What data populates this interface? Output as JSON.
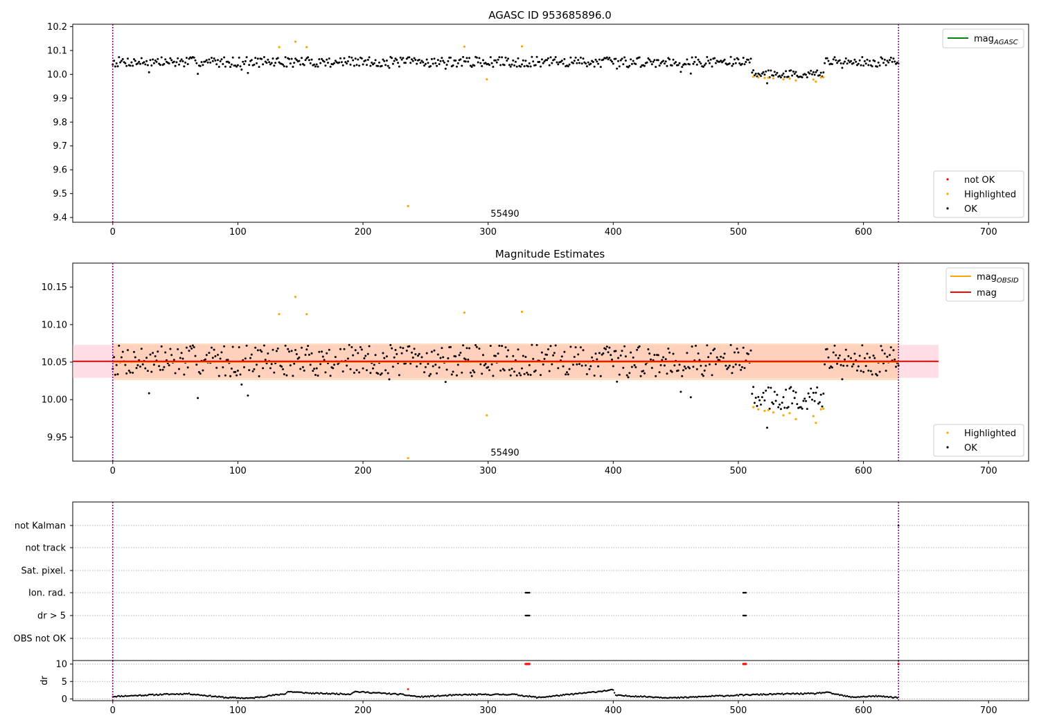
{
  "chart_data": [
    {
      "type": "scatter",
      "title": "AGASC ID 953685896.0",
      "xlabel": "",
      "ylabel": "",
      "xlim": [
        -32,
        732
      ],
      "ylim": [
        9.38,
        10.21
      ],
      "x_ticks": [
        0,
        100,
        200,
        300,
        400,
        500,
        600,
        700
      ],
      "y_ticks": [
        9.4,
        9.5,
        9.6,
        9.7,
        9.8,
        9.9,
        10.0,
        10.1,
        10.2
      ],
      "y_tick_labels": [
        "9.4",
        "9.5",
        "9.6",
        "9.7",
        "9.8",
        "9.9",
        "10.0",
        "10.1",
        "10.2"
      ],
      "grid": false,
      "vlines": [
        0,
        628
      ],
      "obsid_labels": [
        {
          "x": 302,
          "text": "55490"
        }
      ],
      "lines": [
        {
          "name": "mag_AGASC",
          "color": "#008000",
          "y": null
        }
      ],
      "legend_lines": {
        "position": "top-right",
        "entries": [
          {
            "base": "mag",
            "sub": "AGASC",
            "color": "#008000"
          }
        ]
      },
      "legend_points": {
        "position": "bottom-right",
        "entries": [
          {
            "label": "not OK",
            "color": "#ff0000"
          },
          {
            "label": "Highlighted",
            "color": "#ffa500"
          },
          {
            "label": "OK",
            "color": "#000000"
          }
        ]
      },
      "ok_series": {
        "name": "OK",
        "color": "#000000",
        "generator": {
          "n": 629,
          "base": 10.052,
          "noise": 0.021,
          "dip": [
            512,
            568,
            -0.05
          ],
          "seed": 7
        }
      },
      "highlighted_series": {
        "name": "Highlighted",
        "color": "#ffa500",
        "x": [
          133,
          146,
          155,
          236,
          281,
          299,
          327,
          512,
          516,
          521,
          524,
          528,
          536,
          541,
          546,
          560,
          562,
          566,
          568
        ],
        "y": [
          10.114,
          10.137,
          10.114,
          9.448,
          10.116,
          9.979,
          10.117,
          9.99,
          9.987,
          9.985,
          9.986,
          9.983,
          9.979,
          9.982,
          9.974,
          9.978,
          9.969,
          9.987,
          9.988
        ]
      }
    },
    {
      "type": "scatter",
      "title": "Magnitude Estimates",
      "xlabel": "",
      "ylabel": "",
      "xlim": [
        -32,
        732
      ],
      "ylim": [
        9.918,
        10.182
      ],
      "x_ticks": [
        0,
        100,
        200,
        300,
        400,
        500,
        600,
        700
      ],
      "y_ticks": [
        9.95,
        10.0,
        10.05,
        10.1,
        10.15
      ],
      "y_tick_labels": [
        "9.95",
        "10.00",
        "10.05",
        "10.10",
        "10.15"
      ],
      "grid": false,
      "vlines": [
        0,
        628
      ],
      "obsid_labels": [
        {
          "x": 302,
          "text": "55490"
        }
      ],
      "mag": 10.051,
      "mag_band": [
        10.029,
        10.073
      ],
      "mag_band_x": [
        -32,
        660
      ],
      "mag_obsid": 10.05,
      "mag_obsid_band": [
        10.026,
        10.075
      ],
      "mag_obsid_band_x": [
        0,
        628
      ],
      "legend_lines": {
        "position": "top-right",
        "entries": [
          {
            "base": "mag",
            "sub": "OBSID",
            "color": "#ffa500"
          },
          {
            "base": "mag",
            "sub": "",
            "color": "#ff0000"
          }
        ]
      },
      "legend_points": {
        "position": "bottom-right",
        "entries": [
          {
            "label": "Highlighted",
            "color": "#ffa500"
          },
          {
            "label": "OK",
            "color": "#000000"
          }
        ]
      },
      "ok_series": {
        "name": "OK",
        "color": "#000000",
        "generator": {
          "n": 629,
          "base": 10.052,
          "noise": 0.021,
          "dip": [
            512,
            568,
            -0.05
          ],
          "seed": 7
        }
      },
      "highlighted_series": {
        "name": "Highlighted",
        "color": "#ffa500",
        "x": [
          133,
          146,
          155,
          236,
          281,
          299,
          327,
          512,
          516,
          521,
          524,
          528,
          536,
          541,
          546,
          560,
          562,
          566,
          568
        ],
        "y": [
          10.114,
          10.137,
          10.114,
          9.922,
          10.116,
          9.979,
          10.117,
          9.99,
          9.987,
          9.985,
          9.986,
          9.983,
          9.979,
          9.982,
          9.974,
          9.978,
          9.969,
          9.987,
          9.988
        ]
      }
    },
    {
      "type": "scatter",
      "title": "",
      "xlim": [
        -32,
        732
      ],
      "categories": [
        "not Kalman",
        "not track",
        "Sat. pixel.",
        "Ion. rad.",
        "dr > 5",
        "OBS not OK"
      ],
      "grid": true,
      "vlines": [
        0,
        628
      ],
      "flags": {
        "Ion. rad.": [
          330,
          331,
          332,
          333,
          504,
          505,
          506
        ],
        "dr > 5": [
          330,
          331,
          332,
          333,
          504,
          505,
          506
        ],
        "not Kalman": [
          628
        ]
      }
    },
    {
      "type": "scatter",
      "title": "",
      "ylabel": "dr",
      "xlim": [
        -32,
        732
      ],
      "ylim": [
        -0.5,
        11
      ],
      "x_ticks": [
        0,
        100,
        200,
        300,
        400,
        500,
        600,
        700
      ],
      "y_ticks": [
        0,
        5,
        10
      ],
      "grid": true,
      "vlines": [
        0,
        628
      ],
      "dr_series": {
        "name": "dr",
        "color": "#000000",
        "segments": [
          [
            0,
            0.7
          ],
          [
            40,
            1.3
          ],
          [
            60,
            1.5
          ],
          [
            90,
            0.4
          ],
          [
            110,
            0.2
          ],
          [
            138,
            1.5
          ],
          [
            140,
            2.1
          ],
          [
            160,
            1.6
          ],
          [
            190,
            1.4
          ],
          [
            193,
            2.1
          ],
          [
            230,
            1.3
          ],
          [
            245,
            0.6
          ],
          [
            280,
            1.2
          ],
          [
            320,
            1.3
          ],
          [
            340,
            0.4
          ],
          [
            380,
            1.8
          ],
          [
            400,
            2.6
          ],
          [
            402,
            1.0
          ],
          [
            450,
            0.3
          ],
          [
            480,
            0.8
          ],
          [
            510,
            1.2
          ],
          [
            545,
            1.5
          ],
          [
            560,
            1.5
          ],
          [
            570,
            1.9
          ],
          [
            590,
            0.5
          ],
          [
            610,
            0.8
          ],
          [
            628,
            0.4
          ]
        ]
      },
      "dr_outliers": [
        {
          "x": 236,
          "y": 2.8
        }
      ],
      "red_points": {
        "color": "#ff0000",
        "x": [
          330,
          331,
          332,
          333,
          504,
          505,
          506,
          628
        ],
        "y": [
          10,
          10,
          10,
          10,
          10,
          10,
          10,
          10
        ]
      }
    }
  ]
}
